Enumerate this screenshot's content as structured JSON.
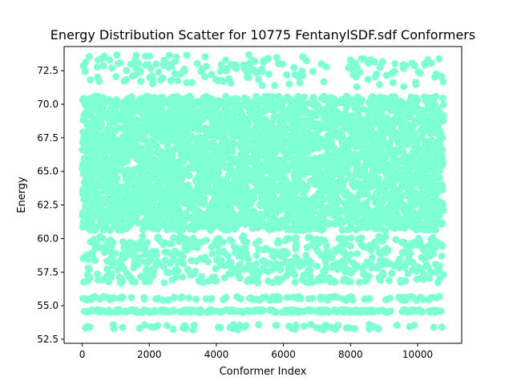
{
  "chart_data": {
    "type": "scatter",
    "title": "Energy Distribution Scatter for 10775 FentanylSDF.sdf Conformers",
    "xlabel": "Conformer Index",
    "ylabel": "Energy",
    "xlim": [
      -540,
      11314
    ],
    "ylim": [
      52.2,
      74.3
    ],
    "x_ticks": [
      0,
      2000,
      4000,
      6000,
      8000,
      10000
    ],
    "y_ticks": [
      52.5,
      55.0,
      57.5,
      60.0,
      62.5,
      65.0,
      67.5,
      70.0,
      72.5
    ],
    "x_tick_labels": [
      "0",
      "2000",
      "4000",
      "6000",
      "8000",
      "10000"
    ],
    "y_tick_labels": [
      "52.5",
      "55.0",
      "57.5",
      "60.0",
      "62.5",
      "65.0",
      "67.5",
      "70.0",
      "72.5"
    ],
    "grid": false,
    "legend": false,
    "marker_color": "#7fffd4",
    "point_count": 10775,
    "x_range": [
      0,
      10774
    ],
    "bands": [
      {
        "y_min": 53.2,
        "y_max": 53.6,
        "density": 0.012
      },
      {
        "y_min": 54.5,
        "y_max": 54.7,
        "density": 0.045
      },
      {
        "y_min": 55.4,
        "y_max": 55.7,
        "density": 0.02
      },
      {
        "y_min": 56.7,
        "y_max": 60.2,
        "density": 0.11
      },
      {
        "y_min": 60.6,
        "y_max": 70.6,
        "density": 0.74
      },
      {
        "y_min": 71.3,
        "y_max": 73.7,
        "density": 0.035
      }
    ]
  }
}
